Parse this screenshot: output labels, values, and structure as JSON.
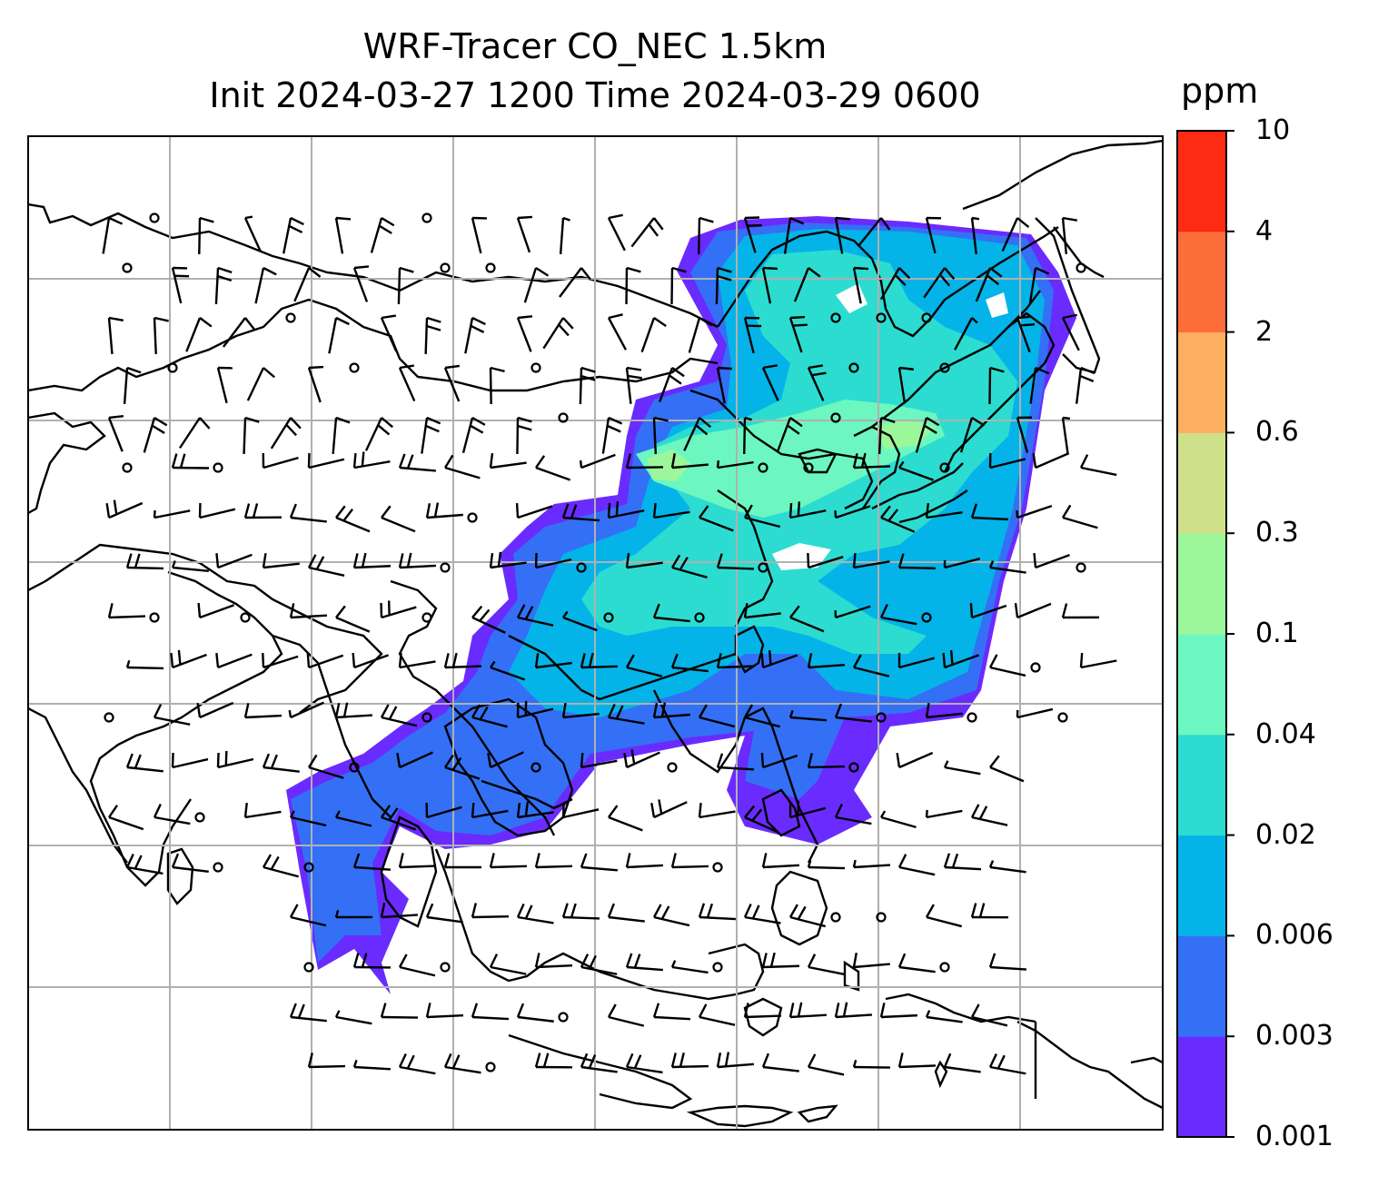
{
  "title": {
    "line1": "WRF-Tracer CO_NEC 1.5km",
    "line2": "Init 2024-03-27 1200 Time 2024-03-29 0600"
  },
  "colorbar": {
    "unit": "ppm",
    "levels": [
      "0.001",
      "0.003",
      "0.006",
      "0.02",
      "0.04",
      "0.1",
      "0.3",
      "0.6",
      "2",
      "4",
      "10"
    ],
    "colors": [
      "#6a2bff",
      "#3370f5",
      "#04b4e8",
      "#2ddcd0",
      "#6cf7c0",
      "#9cf79a",
      "#cfe08a",
      "#fcae61",
      "#fd6d3a",
      "#fd2a14"
    ]
  },
  "map": {
    "gridlines": true,
    "plume_colors": {
      "edge": "#6a2bff",
      "low": "#3370f5",
      "mid": "#04b4e8",
      "high": "#2ddcd0",
      "peak": "#6cf7c0",
      "max": "#9cf79a"
    },
    "coastline_color": "#000000",
    "grid_color": "#b0b0b0"
  }
}
